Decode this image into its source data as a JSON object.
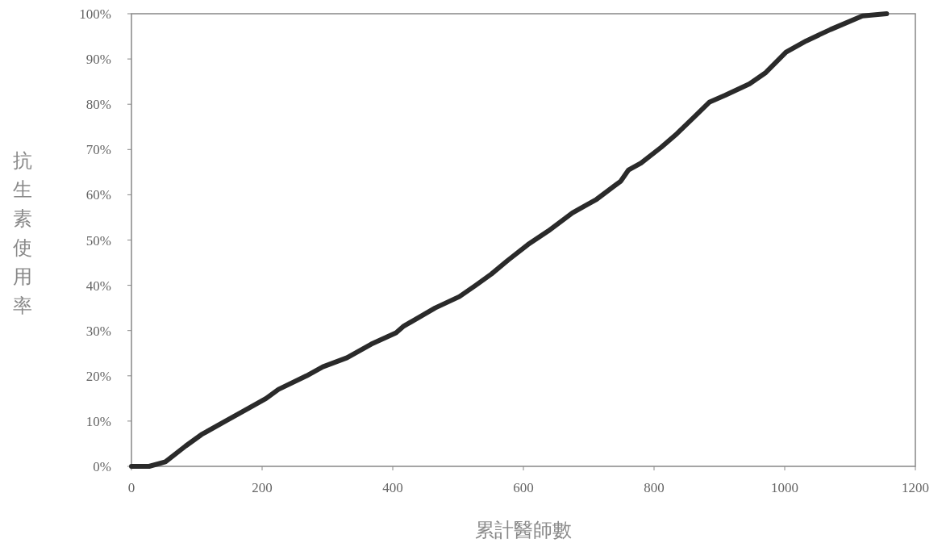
{
  "chart_data": {
    "type": "line",
    "xlabel": "累計醫師數",
    "ylabel": "抗生素使用率",
    "x": [
      0,
      27,
      52,
      83,
      107,
      144,
      169,
      206,
      225,
      268,
      293,
      330,
      367,
      405,
      417,
      465,
      502,
      527,
      551,
      576,
      607,
      638,
      675,
      712,
      749,
      761,
      780,
      811,
      835,
      860,
      885,
      909,
      946,
      971,
      1002,
      1033,
      1070,
      1119,
      1156
    ],
    "series": [
      {
        "color": "#2a2a2a",
        "values": [
          0,
          0,
          1,
          4.5,
          7,
          10,
          12,
          15,
          17,
          20,
          22,
          24,
          27,
          29.5,
          31,
          35,
          37.5,
          40,
          42.5,
          45.5,
          49,
          52,
          56,
          59,
          63,
          65.5,
          67,
          70.5,
          73.5,
          77,
          80.5,
          82,
          84.5,
          87,
          91.5,
          94,
          96.5,
          99.5,
          100
        ]
      }
    ],
    "xlim": [
      0,
      1200
    ],
    "xticks": [
      0,
      200,
      400,
      600,
      800,
      1000,
      1200
    ],
    "ylim": [
      0,
      100
    ],
    "yticks": [
      {
        "value": 0,
        "label": "0%"
      },
      {
        "value": 10,
        "label": "10%"
      },
      {
        "value": 20,
        "label": "20%"
      },
      {
        "value": 30,
        "label": "30%"
      },
      {
        "value": 40,
        "label": "40%"
      },
      {
        "value": 50,
        "label": "50%"
      },
      {
        "value": 60,
        "label": "60%"
      },
      {
        "value": 70,
        "label": "70%"
      },
      {
        "value": 80,
        "label": "80%"
      },
      {
        "value": 90,
        "label": "90%"
      },
      {
        "value": 100,
        "label": "100%"
      }
    ],
    "grid": false,
    "marker": "none",
    "line_style": "solid"
  }
}
